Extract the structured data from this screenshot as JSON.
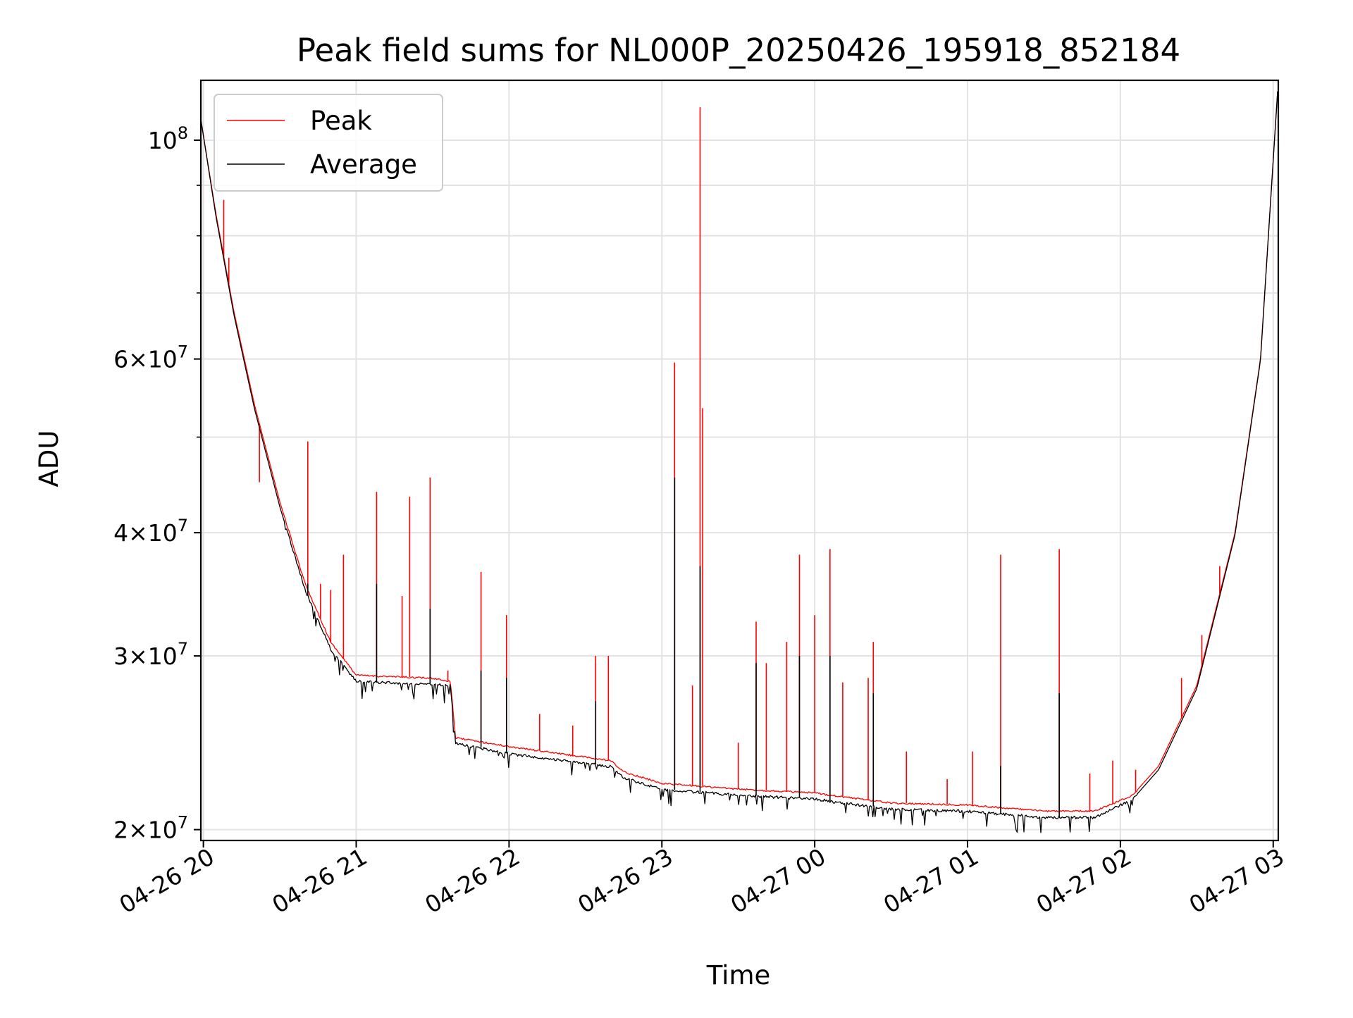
{
  "chart_data": {
    "type": "line",
    "title": "Peak field sums for NL000P_20250426_195918_852184",
    "xlabel": "Time",
    "ylabel": "ADU",
    "x_axis": {
      "kind": "datetime",
      "range": [
        "2025-04-26 19:59",
        "2025-04-27 03:02"
      ],
      "ticks": [
        {
          "value": "2025-04-26 20:00",
          "label": "04-26 20"
        },
        {
          "value": "2025-04-26 21:00",
          "label": "04-26 21"
        },
        {
          "value": "2025-04-26 22:00",
          "label": "04-26 22"
        },
        {
          "value": "2025-04-26 23:00",
          "label": "04-26 23"
        },
        {
          "value": "2025-04-27 00:00",
          "label": "04-27 00"
        },
        {
          "value": "2025-04-27 01:00",
          "label": "04-27 01"
        },
        {
          "value": "2025-04-27 02:00",
          "label": "04-27 02"
        },
        {
          "value": "2025-04-27 03:00",
          "label": "04-27 03"
        }
      ]
    },
    "y_axis": {
      "scale": "log",
      "range": [
        19500000,
        115000000
      ],
      "major_ticks": [
        {
          "value": 20000000,
          "base": "2",
          "exp": "7"
        },
        {
          "value": 30000000,
          "base": "3",
          "exp": "7"
        },
        {
          "value": 40000000,
          "base": "4",
          "exp": "7"
        },
        {
          "value": 60000000,
          "base": "6",
          "exp": "7"
        },
        {
          "value": 100000000,
          "base": "10",
          "exp": "8"
        }
      ],
      "minor_ticks": [
        50000000,
        70000000,
        80000000,
        90000000
      ]
    },
    "grid": true,
    "legend": {
      "placement": "upper-left"
    },
    "series": [
      {
        "name": "Peak",
        "color": "#ff0000",
        "points": [
          [
            "2025-04-26 19:59",
            105000000
          ],
          [
            "2025-04-26 20:05",
            84000000
          ],
          [
            "2025-04-26 20:12",
            67000000
          ],
          [
            "2025-04-26 20:20",
            54000000
          ],
          [
            "2025-04-26 20:30",
            43000000
          ],
          [
            "2025-04-26 20:40",
            35500000
          ],
          [
            "2025-04-26 20:50",
            31000000
          ],
          [
            "2025-04-26 21:00",
            28700000
          ],
          [
            "2025-04-26 21:30",
            28500000
          ],
          [
            "2025-04-26 21:37",
            28300000
          ],
          [
            "2025-04-26 21:39",
            24800000
          ],
          [
            "2025-04-26 22:00",
            24300000
          ],
          [
            "2025-04-26 22:40",
            23500000
          ],
          [
            "2025-04-26 22:45",
            22900000
          ],
          [
            "2025-04-26 23:00",
            22300000
          ],
          [
            "2025-04-26 23:30",
            22000000
          ],
          [
            "2025-04-27 00:00",
            21800000
          ],
          [
            "2025-04-27 00:30",
            21300000
          ],
          [
            "2025-04-27 01:00",
            21200000
          ],
          [
            "2025-04-27 01:30",
            20900000
          ],
          [
            "2025-04-27 01:50",
            20900000
          ],
          [
            "2025-04-27 02:05",
            21700000
          ],
          [
            "2025-04-27 02:15",
            23200000
          ],
          [
            "2025-04-27 02:30",
            28000000
          ],
          [
            "2025-04-27 02:45",
            40000000
          ],
          [
            "2025-04-27 02:55",
            60000000
          ],
          [
            "2025-04-27 03:02",
            115000000
          ]
        ],
        "spikes": [
          [
            "2025-04-26 20:08",
            87000000
          ],
          [
            "2025-04-26 20:10",
            76000000
          ],
          [
            "2025-04-26 20:22",
            45000000
          ],
          [
            "2025-04-26 20:41",
            49500000
          ],
          [
            "2025-04-26 20:46",
            35500000
          ],
          [
            "2025-04-26 20:50",
            35000000
          ],
          [
            "2025-04-26 20:55",
            38000000
          ],
          [
            "2025-04-26 21:08",
            44000000
          ],
          [
            "2025-04-26 21:18",
            34500000
          ],
          [
            "2025-04-26 21:21",
            43500000
          ],
          [
            "2025-04-26 21:29",
            45500000
          ],
          [
            "2025-04-26 21:36",
            29000000
          ],
          [
            "2025-04-26 21:49",
            36500000
          ],
          [
            "2025-04-26 21:59",
            33000000
          ],
          [
            "2025-04-26 22:12",
            26200000
          ],
          [
            "2025-04-26 22:25",
            25500000
          ],
          [
            "2025-04-26 22:34",
            30000000
          ],
          [
            "2025-04-26 22:39",
            30000000
          ],
          [
            "2025-04-26 23:05",
            59500000
          ],
          [
            "2025-04-26 23:12",
            28000000
          ],
          [
            "2025-04-26 23:15",
            108000000
          ],
          [
            "2025-04-26 23:16",
            53500000
          ],
          [
            "2025-04-26 23:30",
            24500000
          ],
          [
            "2025-04-26 23:37",
            32500000
          ],
          [
            "2025-04-26 23:41",
            29500000
          ],
          [
            "2025-04-26 23:49",
            31000000
          ],
          [
            "2025-04-26 23:54",
            38000000
          ],
          [
            "2025-04-27 00:00",
            33000000
          ],
          [
            "2025-04-27 00:06",
            38500000
          ],
          [
            "2025-04-27 00:11",
            28200000
          ],
          [
            "2025-04-27 00:21",
            28500000
          ],
          [
            "2025-04-27 00:23",
            31000000
          ],
          [
            "2025-04-27 00:36",
            24000000
          ],
          [
            "2025-04-27 00:52",
            22500000
          ],
          [
            "2025-04-27 01:02",
            24000000
          ],
          [
            "2025-04-27 01:13",
            38000000
          ],
          [
            "2025-04-27 01:36",
            38500000
          ],
          [
            "2025-04-27 01:48",
            22800000
          ],
          [
            "2025-04-27 01:57",
            23500000
          ],
          [
            "2025-04-27 02:06",
            23000000
          ],
          [
            "2025-04-27 02:24",
            28500000
          ],
          [
            "2025-04-27 02:32",
            31500000
          ],
          [
            "2025-04-27 02:39",
            37000000
          ]
        ]
      },
      {
        "name": "Average",
        "color": "#000000",
        "points": [
          [
            "2025-04-26 19:59",
            105000000
          ],
          [
            "2025-04-26 20:05",
            83500000
          ],
          [
            "2025-04-26 20:12",
            66500000
          ],
          [
            "2025-04-26 20:20",
            53500000
          ],
          [
            "2025-04-26 20:30",
            42500000
          ],
          [
            "2025-04-26 20:40",
            35000000
          ],
          [
            "2025-04-26 20:50",
            30500000
          ],
          [
            "2025-04-26 21:00",
            28300000
          ],
          [
            "2025-04-26 21:30",
            28100000
          ],
          [
            "2025-04-26 21:37",
            28000000
          ],
          [
            "2025-04-26 21:39",
            24500000
          ],
          [
            "2025-04-26 22:00",
            23900000
          ],
          [
            "2025-04-26 22:40",
            23200000
          ],
          [
            "2025-04-26 22:45",
            22600000
          ],
          [
            "2025-04-26 23:00",
            22000000
          ],
          [
            "2025-04-26 23:30",
            21700000
          ],
          [
            "2025-04-27 00:00",
            21500000
          ],
          [
            "2025-04-27 00:30",
            21000000
          ],
          [
            "2025-04-27 01:00",
            20900000
          ],
          [
            "2025-04-27 01:30",
            20600000
          ],
          [
            "2025-04-27 01:50",
            20600000
          ],
          [
            "2025-04-27 02:05",
            21500000
          ],
          [
            "2025-04-27 02:15",
            23000000
          ],
          [
            "2025-04-27 02:30",
            27800000
          ],
          [
            "2025-04-27 02:45",
            39800000
          ],
          [
            "2025-04-27 02:55",
            59800000
          ],
          [
            "2025-04-27 03:02",
            115000000
          ]
        ],
        "spikes": [
          [
            "2025-04-26 20:41",
            35500000
          ],
          [
            "2025-04-26 21:08",
            35500000
          ],
          [
            "2025-04-26 21:29",
            33500000
          ],
          [
            "2025-04-26 21:49",
            29000000
          ],
          [
            "2025-04-26 21:59",
            28500000
          ],
          [
            "2025-04-26 22:34",
            27000000
          ],
          [
            "2025-04-26 23:05",
            45500000
          ],
          [
            "2025-04-26 23:15",
            37000000
          ],
          [
            "2025-04-26 23:37",
            29500000
          ],
          [
            "2025-04-26 23:54",
            30000000
          ],
          [
            "2025-04-27 00:06",
            30000000
          ],
          [
            "2025-04-27 00:23",
            27500000
          ],
          [
            "2025-04-27 01:13",
            23200000
          ],
          [
            "2025-04-27 01:36",
            27500000
          ]
        ]
      }
    ]
  }
}
